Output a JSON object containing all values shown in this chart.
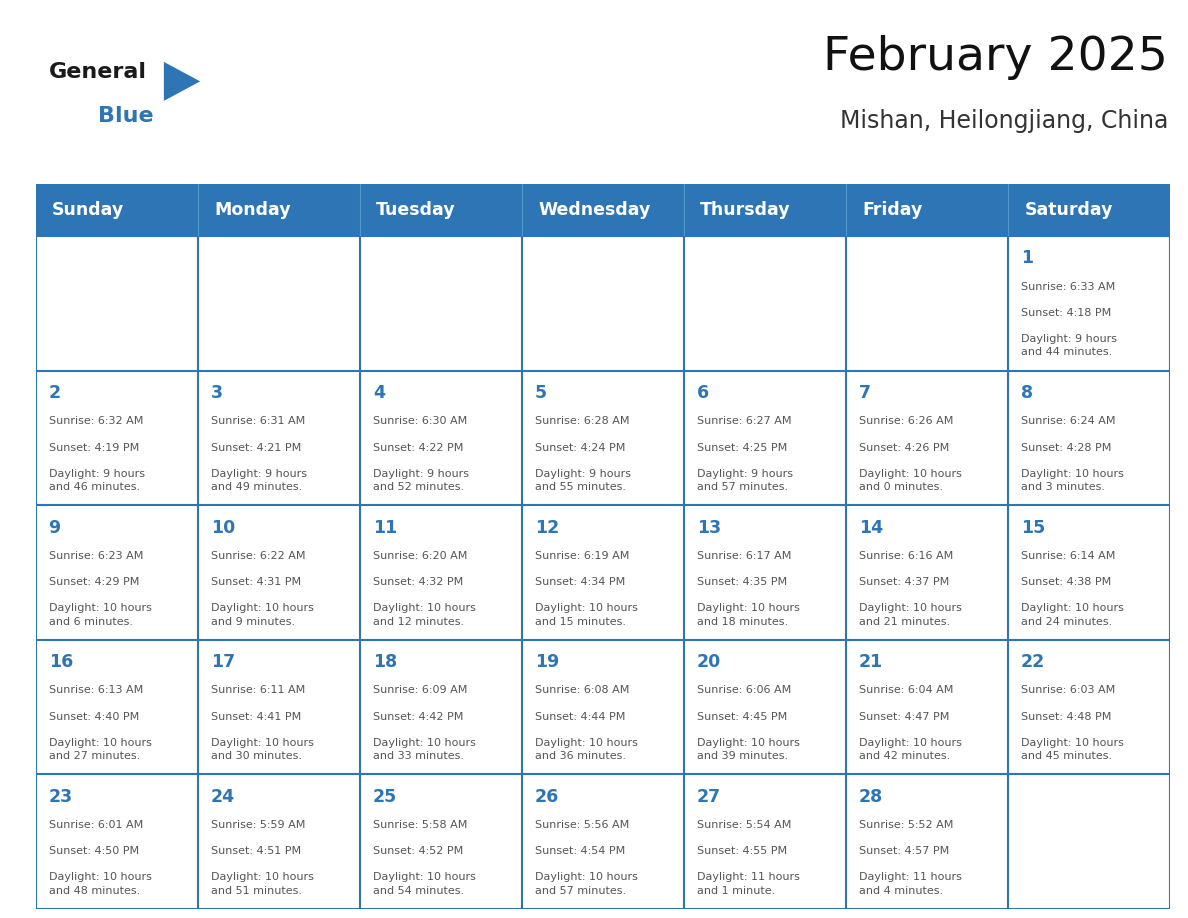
{
  "title": "February 2025",
  "subtitle": "Mishan, Heilongjiang, China",
  "header_color": "#2E75B6",
  "header_text_color": "#FFFFFF",
  "border_color": "#2E75B6",
  "day_names": [
    "Sunday",
    "Monday",
    "Tuesday",
    "Wednesday",
    "Thursday",
    "Friday",
    "Saturday"
  ],
  "bg_color": "#FFFFFF",
  "cell_text_color": "#555555",
  "day_number_color": "#2E75B6",
  "logo_general_color": "#1a1a1a",
  "logo_blue_color": "#2E75B6",
  "calendar": [
    [
      null,
      null,
      null,
      null,
      null,
      null,
      1
    ],
    [
      2,
      3,
      4,
      5,
      6,
      7,
      8
    ],
    [
      9,
      10,
      11,
      12,
      13,
      14,
      15
    ],
    [
      16,
      17,
      18,
      19,
      20,
      21,
      22
    ],
    [
      23,
      24,
      25,
      26,
      27,
      28,
      null
    ]
  ],
  "cell_data": {
    "1": {
      "sunrise": "6:33 AM",
      "sunset": "4:18 PM",
      "daylight": "9 hours\nand 44 minutes."
    },
    "2": {
      "sunrise": "6:32 AM",
      "sunset": "4:19 PM",
      "daylight": "9 hours\nand 46 minutes."
    },
    "3": {
      "sunrise": "6:31 AM",
      "sunset": "4:21 PM",
      "daylight": "9 hours\nand 49 minutes."
    },
    "4": {
      "sunrise": "6:30 AM",
      "sunset": "4:22 PM",
      "daylight": "9 hours\nand 52 minutes."
    },
    "5": {
      "sunrise": "6:28 AM",
      "sunset": "4:24 PM",
      "daylight": "9 hours\nand 55 minutes."
    },
    "6": {
      "sunrise": "6:27 AM",
      "sunset": "4:25 PM",
      "daylight": "9 hours\nand 57 minutes."
    },
    "7": {
      "sunrise": "6:26 AM",
      "sunset": "4:26 PM",
      "daylight": "10 hours\nand 0 minutes."
    },
    "8": {
      "sunrise": "6:24 AM",
      "sunset": "4:28 PM",
      "daylight": "10 hours\nand 3 minutes."
    },
    "9": {
      "sunrise": "6:23 AM",
      "sunset": "4:29 PM",
      "daylight": "10 hours\nand 6 minutes."
    },
    "10": {
      "sunrise": "6:22 AM",
      "sunset": "4:31 PM",
      "daylight": "10 hours\nand 9 minutes."
    },
    "11": {
      "sunrise": "6:20 AM",
      "sunset": "4:32 PM",
      "daylight": "10 hours\nand 12 minutes."
    },
    "12": {
      "sunrise": "6:19 AM",
      "sunset": "4:34 PM",
      "daylight": "10 hours\nand 15 minutes."
    },
    "13": {
      "sunrise": "6:17 AM",
      "sunset": "4:35 PM",
      "daylight": "10 hours\nand 18 minutes."
    },
    "14": {
      "sunrise": "6:16 AM",
      "sunset": "4:37 PM",
      "daylight": "10 hours\nand 21 minutes."
    },
    "15": {
      "sunrise": "6:14 AM",
      "sunset": "4:38 PM",
      "daylight": "10 hours\nand 24 minutes."
    },
    "16": {
      "sunrise": "6:13 AM",
      "sunset": "4:40 PM",
      "daylight": "10 hours\nand 27 minutes."
    },
    "17": {
      "sunrise": "6:11 AM",
      "sunset": "4:41 PM",
      "daylight": "10 hours\nand 30 minutes."
    },
    "18": {
      "sunrise": "6:09 AM",
      "sunset": "4:42 PM",
      "daylight": "10 hours\nand 33 minutes."
    },
    "19": {
      "sunrise": "6:08 AM",
      "sunset": "4:44 PM",
      "daylight": "10 hours\nand 36 minutes."
    },
    "20": {
      "sunrise": "6:06 AM",
      "sunset": "4:45 PM",
      "daylight": "10 hours\nand 39 minutes."
    },
    "21": {
      "sunrise": "6:04 AM",
      "sunset": "4:47 PM",
      "daylight": "10 hours\nand 42 minutes."
    },
    "22": {
      "sunrise": "6:03 AM",
      "sunset": "4:48 PM",
      "daylight": "10 hours\nand 45 minutes."
    },
    "23": {
      "sunrise": "6:01 AM",
      "sunset": "4:50 PM",
      "daylight": "10 hours\nand 48 minutes."
    },
    "24": {
      "sunrise": "5:59 AM",
      "sunset": "4:51 PM",
      "daylight": "10 hours\nand 51 minutes."
    },
    "25": {
      "sunrise": "5:58 AM",
      "sunset": "4:52 PM",
      "daylight": "10 hours\nand 54 minutes."
    },
    "26": {
      "sunrise": "5:56 AM",
      "sunset": "4:54 PM",
      "daylight": "10 hours\nand 57 minutes."
    },
    "27": {
      "sunrise": "5:54 AM",
      "sunset": "4:55 PM",
      "daylight": "11 hours\nand 1 minute."
    },
    "28": {
      "sunrise": "5:52 AM",
      "sunset": "4:57 PM",
      "daylight": "11 hours\nand 4 minutes."
    }
  }
}
